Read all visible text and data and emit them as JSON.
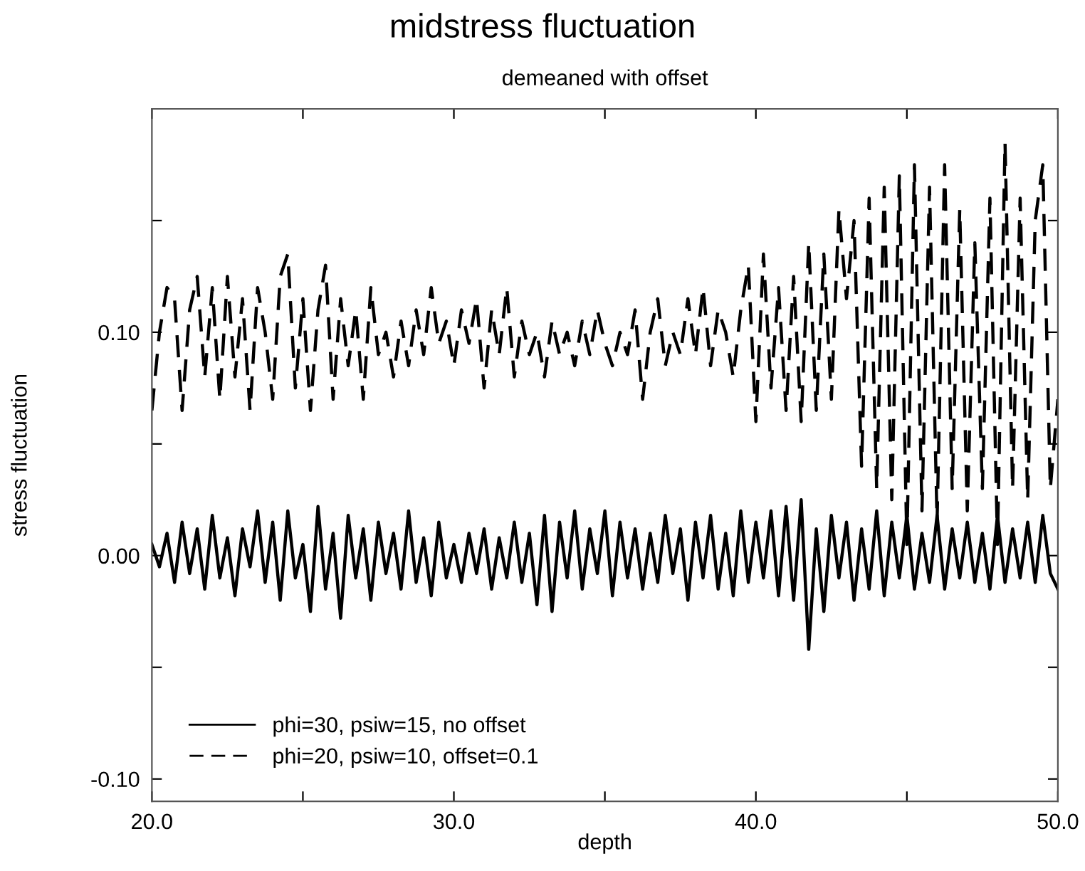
{
  "chart_data": {
    "type": "line",
    "title": "midstress fluctuation",
    "subtitle": "demeaned with offset",
    "xlabel": "depth",
    "ylabel": "stress fluctuation",
    "xlim": [
      20,
      50
    ],
    "xticks": [
      {
        "value": 20,
        "label": "20.0"
      },
      {
        "value": 25,
        "label": null
      },
      {
        "value": 30,
        "label": "30.0"
      },
      {
        "value": 35,
        "label": null
      },
      {
        "value": 40,
        "label": "40.0"
      },
      {
        "value": 45,
        "label": null
      },
      {
        "value": 50,
        "label": "50.0"
      }
    ],
    "ylim": [
      -0.11,
      0.2
    ],
    "yticks": [
      {
        "value": -0.1,
        "label": "-0.10"
      },
      {
        "value": -0.05,
        "label": null
      },
      {
        "value": 0,
        "label": "0.00"
      },
      {
        "value": 0.05,
        "label": null
      },
      {
        "value": 0.1,
        "label": "0.10"
      },
      {
        "value": 0.15,
        "label": null
      }
    ],
    "grid": false,
    "legend": "bottom left",
    "marker": "none",
    "x": [
      20.0,
      20.25,
      20.5,
      20.75,
      21.0,
      21.25,
      21.5,
      21.75,
      22.0,
      22.25,
      22.5,
      22.75,
      23.0,
      23.25,
      23.5,
      23.75,
      24.0,
      24.25,
      24.5,
      24.75,
      25.0,
      25.25,
      25.5,
      25.75,
      26.0,
      26.25,
      26.5,
      26.75,
      27.0,
      27.25,
      27.5,
      27.75,
      28.0,
      28.25,
      28.5,
      28.75,
      29.0,
      29.25,
      29.5,
      29.75,
      30.0,
      30.25,
      30.5,
      30.75,
      31.0,
      31.25,
      31.5,
      31.75,
      32.0,
      32.25,
      32.5,
      32.75,
      33.0,
      33.25,
      33.5,
      33.75,
      34.0,
      34.25,
      34.5,
      34.75,
      35.0,
      35.25,
      35.5,
      35.75,
      36.0,
      36.25,
      36.5,
      36.75,
      37.0,
      37.25,
      37.5,
      37.75,
      38.0,
      38.25,
      38.5,
      38.75,
      39.0,
      39.25,
      39.5,
      39.75,
      40.0,
      40.25,
      40.5,
      40.75,
      41.0,
      41.25,
      41.5,
      41.75,
      42.0,
      42.25,
      42.5,
      42.75,
      43.0,
      43.25,
      43.5,
      43.75,
      44.0,
      44.25,
      44.5,
      44.75,
      45.0,
      45.25,
      45.5,
      45.75,
      46.0,
      46.25,
      46.5,
      46.75,
      47.0,
      47.25,
      47.5,
      47.75,
      48.0,
      48.25,
      48.5,
      48.75,
      49.0,
      49.25,
      49.5,
      49.75,
      50.0
    ],
    "series": [
      {
        "name": "phi=30, psiw=15, no offset",
        "color": "#000000",
        "line_style": "solid",
        "values": [
          0.005,
          -0.005,
          0.01,
          -0.012,
          0.015,
          -0.008,
          0.012,
          -0.015,
          0.018,
          -0.01,
          0.008,
          -0.018,
          0.012,
          -0.005,
          0.02,
          -0.012,
          0.015,
          -0.02,
          0.02,
          -0.01,
          0.005,
          -0.025,
          0.022,
          -0.015,
          0.01,
          -0.028,
          0.018,
          -0.01,
          0.012,
          -0.02,
          0.015,
          -0.008,
          0.01,
          -0.015,
          0.02,
          -0.012,
          0.008,
          -0.018,
          0.015,
          -0.01,
          0.005,
          -0.012,
          0.01,
          -0.008,
          0.012,
          -0.015,
          0.008,
          -0.01,
          0.015,
          -0.012,
          0.01,
          -0.022,
          0.018,
          -0.025,
          0.015,
          -0.01,
          0.02,
          -0.015,
          0.012,
          -0.008,
          0.02,
          -0.018,
          0.015,
          -0.01,
          0.012,
          -0.015,
          0.01,
          -0.012,
          0.018,
          -0.008,
          0.012,
          -0.02,
          0.015,
          -0.01,
          0.018,
          -0.015,
          0.01,
          -0.018,
          0.02,
          -0.012,
          0.015,
          -0.01,
          0.02,
          -0.018,
          0.022,
          -0.02,
          0.025,
          -0.042,
          0.012,
          -0.025,
          0.018,
          -0.01,
          0.015,
          -0.02,
          0.012,
          -0.015,
          0.02,
          -0.018,
          0.015,
          -0.01,
          0.018,
          -0.015,
          0.01,
          -0.012,
          0.018,
          -0.015,
          0.012,
          -0.01,
          0.015,
          -0.012,
          0.01,
          -0.015,
          0.018,
          -0.012,
          0.012,
          -0.01,
          0.015,
          -0.012,
          0.018,
          -0.008,
          -0.015
        ]
      },
      {
        "name": "phi=20, psiw=10, offset=0.1",
        "color": "#000000",
        "line_style": "dashed",
        "values": [
          0.065,
          0.1,
          0.12,
          0.115,
          0.065,
          0.11,
          0.125,
          0.08,
          0.12,
          0.07,
          0.125,
          0.08,
          0.115,
          0.065,
          0.12,
          0.1,
          0.07,
          0.125,
          0.135,
          0.075,
          0.115,
          0.065,
          0.11,
          0.13,
          0.07,
          0.115,
          0.085,
          0.11,
          0.07,
          0.12,
          0.09,
          0.1,
          0.08,
          0.105,
          0.085,
          0.11,
          0.09,
          0.12,
          0.095,
          0.105,
          0.085,
          0.11,
          0.095,
          0.115,
          0.075,
          0.11,
          0.09,
          0.12,
          0.08,
          0.105,
          0.09,
          0.1,
          0.08,
          0.105,
          0.09,
          0.1,
          0.085,
          0.105,
          0.09,
          0.11,
          0.095,
          0.085,
          0.1,
          0.09,
          0.11,
          0.07,
          0.1,
          0.115,
          0.085,
          0.1,
          0.09,
          0.115,
          0.09,
          0.12,
          0.085,
          0.11,
          0.1,
          0.08,
          0.11,
          0.13,
          0.06,
          0.135,
          0.075,
          0.12,
          0.065,
          0.125,
          0.06,
          0.14,
          0.065,
          0.135,
          0.07,
          0.155,
          0.115,
          0.15,
          0.04,
          0.16,
          0.03,
          0.165,
          0.025,
          0.17,
          0.005,
          0.175,
          0.02,
          0.165,
          0.015,
          0.175,
          0.03,
          0.155,
          0.02,
          0.14,
          0.03,
          0.16,
          0.005,
          0.185,
          0.03,
          0.16,
          0.025,
          0.15,
          0.175,
          0.03,
          0.07
        ]
      }
    ]
  }
}
